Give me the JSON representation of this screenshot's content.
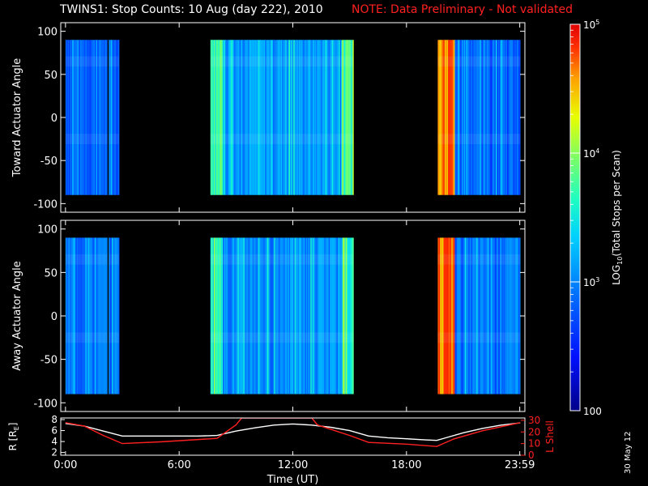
{
  "title": "TWINS1: Stop Counts: 10 Aug (day 222), 2010",
  "note": "NOTE: Data Preliminary - Not validated",
  "side_date": "30 May 12",
  "chart_data": [
    {
      "type": "heatmap",
      "id": "panel-toward",
      "ylabel": "Toward Actuator Angle",
      "ylim": [
        -110,
        110
      ],
      "yticks": [
        100,
        50,
        0,
        -50,
        -100
      ],
      "y_data_range": [
        -90,
        90
      ],
      "xlim": [
        -0.25,
        24.25
      ],
      "data_segments": [
        {
          "start": 0.0,
          "end": 2.83,
          "base_counts": 700,
          "streak_at": 2.25
        },
        {
          "start": 7.65,
          "end": 15.2,
          "base_counts": 1300
        },
        {
          "start": 19.65,
          "end": 24.0,
          "base_counts": 700,
          "intense_edge": [
            19.65,
            20.5
          ]
        }
      ]
    },
    {
      "type": "heatmap",
      "id": "panel-away",
      "ylabel": "Away Actuator Angle",
      "ylim": [
        -110,
        110
      ],
      "yticks": [
        100,
        50,
        0,
        -50,
        -100
      ],
      "y_data_range": [
        -90,
        90
      ],
      "xlim": [
        -0.25,
        24.25
      ],
      "data_segments": [
        {
          "start": 0.0,
          "end": 2.83,
          "base_counts": 800,
          "streak_at": 2.25
        },
        {
          "start": 7.65,
          "end": 15.2,
          "base_counts": 1100
        },
        {
          "start": 19.65,
          "end": 24.0,
          "base_counts": 800,
          "intense_edge": [
            19.65,
            20.5
          ]
        }
      ]
    },
    {
      "type": "line",
      "id": "panel-orbit",
      "xlabel": "Time (UT)",
      "ylabel_left": "R [R_E]",
      "ylabel_right": "L Shell",
      "ylim_left": [
        1.5,
        8.3
      ],
      "yticks_left": [
        2,
        4,
        6,
        8
      ],
      "ylim_right": [
        0,
        32
      ],
      "yticks_right": [
        0,
        10,
        20,
        30
      ],
      "xlim": [
        -0.25,
        24.25
      ],
      "xticks": [
        {
          "value": 0,
          "label": "0:00"
        },
        {
          "value": 6,
          "label": "6:00"
        },
        {
          "value": 12,
          "label": "12:00"
        },
        {
          "value": 18,
          "label": "18:00"
        },
        {
          "value": 23.98,
          "label": "23:59"
        }
      ],
      "series": [
        {
          "axis": "left",
          "color": "#ffffff",
          "x": [
            0,
            1,
            2,
            3,
            4,
            5,
            6,
            7,
            8,
            9,
            10,
            11,
            12,
            13,
            14,
            15,
            16,
            17,
            18,
            19,
            19.6,
            20,
            21,
            22,
            23,
            24
          ],
          "y": [
            7.3,
            6.8,
            5.9,
            5.0,
            5.0,
            5.0,
            5.0,
            5.0,
            5.1,
            5.9,
            6.5,
            7.0,
            7.2,
            7.0,
            6.6,
            6.0,
            5.0,
            4.7,
            4.5,
            4.3,
            4.2,
            4.6,
            5.6,
            6.4,
            7.0,
            7.4
          ]
        },
        {
          "axis": "right",
          "color": "#ff2020",
          "x": [
            0,
            1,
            2,
            3,
            5,
            8,
            9,
            9.3,
            13.0,
            13.3,
            15,
            16,
            18,
            19.6,
            20.5,
            22,
            24
          ],
          "y": [
            28,
            25,
            17,
            10,
            11.5,
            14.5,
            26,
            32,
            32,
            26,
            17,
            11,
            9.5,
            7.5,
            14,
            21,
            28
          ]
        }
      ]
    },
    {
      "type": "colorbar",
      "id": "colorbar",
      "label": "LOG10(Total Stops per Scan)",
      "scale": "log",
      "range": [
        100,
        100000
      ],
      "tick_labels": [
        {
          "value": 100000,
          "label": "10^5"
        },
        {
          "value": 10000,
          "label": "10^4"
        },
        {
          "value": 1000,
          "label": "10^3"
        },
        {
          "value": 100,
          "label": "100"
        }
      ]
    }
  ]
}
